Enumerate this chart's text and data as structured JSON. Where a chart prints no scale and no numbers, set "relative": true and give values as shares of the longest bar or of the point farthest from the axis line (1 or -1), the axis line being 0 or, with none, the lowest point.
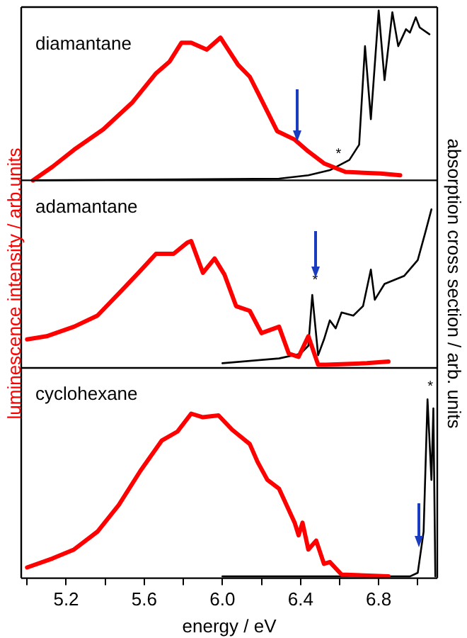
{
  "chart_data": [
    {
      "type": "line",
      "relative": true,
      "xlim": [
        4.97,
        7.1
      ],
      "tick_labels": false,
      "grid": false,
      "legend": false,
      "marker": "none",
      "annotations": [
        "diamantane",
        {
          "text": "*",
          "x": 6.58,
          "y": 0.08
        }
      ],
      "series": [
        {
          "color": "#ff0000",
          "x": [
            5.03,
            5.13,
            5.24,
            5.39,
            5.54,
            5.66,
            5.73,
            5.79,
            5.84,
            5.92,
            5.99,
            6.08,
            6.14,
            6.18,
            6.28,
            6.37,
            6.44,
            6.52,
            6.63,
            6.81,
            6.91
          ],
          "values": [
            0,
            0.08,
            0.18,
            0.3,
            0.46,
            0.63,
            0.7,
            0.81,
            0.81,
            0.77,
            0.84,
            0.68,
            0.61,
            0.52,
            0.29,
            0.24,
            0.17,
            0.1,
            0.05,
            0.04,
            0.03
          ]
        },
        {
          "color": "#000000",
          "x": [
            5.03,
            6.29,
            6.44,
            6.55,
            6.65,
            6.7,
            6.73,
            6.76,
            6.8,
            6.83,
            6.87,
            6.9,
            6.94,
            6.96,
            6.99,
            7.01,
            7.06
          ],
          "values": [
            0,
            0.01,
            0.03,
            0.06,
            0.12,
            0.21,
            0.79,
            0.36,
            1.0,
            0.59,
            0.99,
            0.79,
            0.89,
            0.87,
            0.96,
            0.9,
            0.86
          ]
        }
      ]
    },
    {
      "type": "line",
      "relative": true,
      "xlim": [
        4.97,
        7.1
      ],
      "tick_labels": false,
      "grid": false,
      "legend": false,
      "marker": "none",
      "ylabel": "luminescence intensity / arb.units",
      "y2label": "absorption cross section / arb. units",
      "annotations": [
        "adamantane",
        {
          "text": "*",
          "x": 6.46,
          "y": 0.47
        }
      ],
      "series": [
        {
          "color": "#ff0000",
          "x": [
            5.0,
            5.1,
            5.24,
            5.36,
            5.47,
            5.57,
            5.66,
            5.75,
            5.82,
            5.84,
            5.9,
            5.96,
            6.01,
            6.07,
            6.14,
            6.2,
            6.29,
            6.34,
            6.39,
            6.44,
            6.49,
            6.53,
            6.74,
            6.85
          ],
          "values": [
            0.18,
            0.2,
            0.26,
            0.33,
            0.47,
            0.6,
            0.72,
            0.72,
            0.79,
            0.8,
            0.6,
            0.69,
            0.59,
            0.39,
            0.36,
            0.22,
            0.26,
            0.09,
            0.07,
            0.2,
            0.02,
            0.02,
            0.03,
            0.04
          ]
        },
        {
          "color": "#000000",
          "x": [
            6.0,
            6.29,
            6.4,
            6.44,
            6.46,
            6.49,
            6.52,
            6.55,
            6.58,
            6.61,
            6.67,
            6.72,
            6.76,
            6.78,
            6.83,
            6.93,
            7.0,
            7.04,
            7.07
          ],
          "values": [
            0.03,
            0.06,
            0.09,
            0.14,
            0.46,
            0.08,
            0.18,
            0.3,
            0.25,
            0.35,
            0.33,
            0.39,
            0.62,
            0.43,
            0.53,
            0.58,
            0.68,
            0.86,
            1.0
          ]
        }
      ]
    },
    {
      "type": "line",
      "relative": true,
      "xlim": [
        4.97,
        7.1
      ],
      "xticks": [
        {
          "value": 5.0,
          "label": null
        },
        {
          "value": 5.2,
          "label": "5.2"
        },
        {
          "value": 5.4,
          "label": null
        },
        {
          "value": 5.6,
          "label": "5.6"
        },
        {
          "value": 5.8,
          "label": null
        },
        {
          "value": 6.0,
          "label": "6.0"
        },
        {
          "value": 6.2,
          "label": null
        },
        {
          "value": 6.4,
          "label": "6.4"
        },
        {
          "value": 6.6,
          "label": null
        },
        {
          "value": 6.8,
          "label": "6.8"
        },
        {
          "value": 7.0,
          "label": null
        }
      ],
      "grid": false,
      "legend": false,
      "marker": "none",
      "xlabel": "energy / eV",
      "annotations": [
        "cyclohexane",
        {
          "text": "*",
          "x": 7.05,
          "y": 1.0
        }
      ],
      "series": [
        {
          "color": "#ff0000",
          "x": [
            5.0,
            5.13,
            5.24,
            5.36,
            5.47,
            5.58,
            5.69,
            5.77,
            5.84,
            5.9,
            5.98,
            6.05,
            6.14,
            6.18,
            6.23,
            6.29,
            6.37,
            6.39,
            6.41,
            6.44,
            6.48,
            6.52,
            6.55,
            6.61,
            6.85
          ],
          "values": [
            0.06,
            0.11,
            0.16,
            0.26,
            0.41,
            0.6,
            0.77,
            0.82,
            0.92,
            0.9,
            0.91,
            0.83,
            0.75,
            0.65,
            0.55,
            0.5,
            0.31,
            0.24,
            0.31,
            0.16,
            0.21,
            0.08,
            0.09,
            0.02,
            0.01
          ]
        },
        {
          "color": "#000000",
          "x": [
            6.0,
            6.96,
            7.0,
            7.03,
            7.05,
            7.07,
            7.08,
            7.09
          ],
          "values": [
            0.01,
            0.01,
            0.03,
            0.26,
            1.0,
            0.55,
            0.95,
            0.01
          ]
        }
      ]
    }
  ]
}
